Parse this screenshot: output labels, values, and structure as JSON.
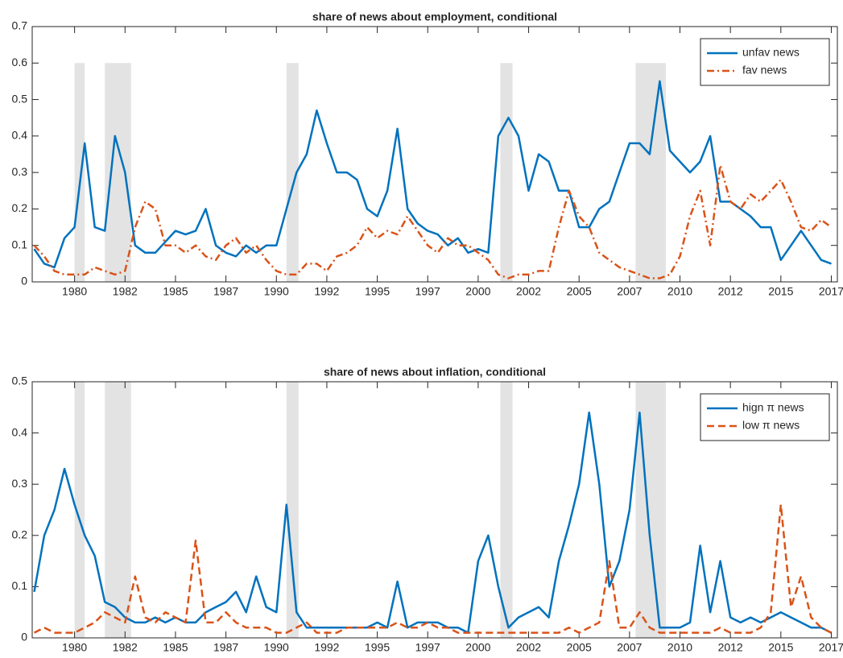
{
  "chart_data": [
    {
      "type": "line",
      "title": "share of news about employment, conditional",
      "x": [
        1978,
        1978.5,
        1979,
        1979.5,
        1980,
        1980.5,
        1981,
        1981.5,
        1982,
        1982.5,
        1983,
        1983.5,
        1984,
        1984.5,
        1985,
        1985.5,
        1986,
        1986.5,
        1987,
        1987.5,
        1988,
        1988.5,
        1989,
        1989.5,
        1990,
        1990.5,
        1991,
        1991.5,
        1992,
        1992.5,
        1993,
        1993.5,
        1994,
        1994.5,
        1995,
        1995.5,
        1996,
        1996.5,
        1997,
        1997.5,
        1998,
        1998.5,
        1999,
        1999.5,
        2000,
        2000.5,
        2001,
        2001.5,
        2002,
        2002.5,
        2003,
        2003.5,
        2004,
        2004.5,
        2005,
        2005.5,
        2006,
        2006.5,
        2007,
        2007.5,
        2008,
        2008.5,
        2009,
        2009.5,
        2010,
        2010.5,
        2011,
        2011.5,
        2012,
        2012.5,
        2013,
        2013.5,
        2014,
        2014.5,
        2015,
        2015.5,
        2016,
        2016.5,
        2017,
        2017.5
      ],
      "series": [
        {
          "name": "unfav news",
          "color": "#0072BD",
          "dash": "solid",
          "values": [
            0.09,
            0.05,
            0.04,
            0.12,
            0.15,
            0.38,
            0.15,
            0.14,
            0.4,
            0.3,
            0.1,
            0.08,
            0.08,
            0.11,
            0.14,
            0.13,
            0.14,
            0.2,
            0.1,
            0.08,
            0.07,
            0.1,
            0.08,
            0.1,
            0.1,
            0.2,
            0.3,
            0.35,
            0.47,
            0.38,
            0.3,
            0.3,
            0.28,
            0.2,
            0.18,
            0.25,
            0.42,
            0.2,
            0.16,
            0.14,
            0.13,
            0.1,
            0.12,
            0.08,
            0.09,
            0.08,
            0.4,
            0.45,
            0.4,
            0.25,
            0.35,
            0.33,
            0.25,
            0.25,
            0.15,
            0.15,
            0.2,
            0.22,
            0.3,
            0.38,
            0.38,
            0.35,
            0.55,
            0.36,
            0.33,
            0.3,
            0.33,
            0.4,
            0.22,
            0.22,
            0.2,
            0.18,
            0.15,
            0.15,
            0.06,
            0.1,
            0.14,
            0.1,
            0.06,
            0.05
          ]
        },
        {
          "name": "fav news",
          "color": "#D95319",
          "dash": "dashdot",
          "values": [
            0.1,
            0.07,
            0.03,
            0.02,
            0.02,
            0.02,
            0.04,
            0.03,
            0.02,
            0.03,
            0.15,
            0.22,
            0.2,
            0.1,
            0.1,
            0.08,
            0.1,
            0.07,
            0.06,
            0.1,
            0.12,
            0.08,
            0.1,
            0.06,
            0.03,
            0.02,
            0.02,
            0.05,
            0.05,
            0.03,
            0.07,
            0.08,
            0.1,
            0.15,
            0.12,
            0.14,
            0.13,
            0.18,
            0.14,
            0.1,
            0.08,
            0.12,
            0.1,
            0.1,
            0.08,
            0.06,
            0.02,
            0.01,
            0.02,
            0.02,
            0.03,
            0.03,
            0.15,
            0.25,
            0.18,
            0.15,
            0.08,
            0.06,
            0.04,
            0.03,
            0.02,
            0.01,
            0.01,
            0.02,
            0.07,
            0.18,
            0.25,
            0.1,
            0.32,
            0.22,
            0.2,
            0.24,
            0.22,
            0.25,
            0.28,
            0.22,
            0.15,
            0.14,
            0.17,
            0.15
          ]
        }
      ],
      "xlim": [
        1977.9,
        2017.8
      ],
      "xticks": [
        1980,
        {
          "value": 1982.5,
          "label": "1982"
        },
        1985,
        {
          "value": 1987.5,
          "label": "1987"
        },
        1990,
        {
          "value": 1992.5,
          "label": "1992"
        },
        1995,
        {
          "value": 1997.5,
          "label": "1997"
        },
        2000,
        {
          "value": 2002.5,
          "label": "2002"
        },
        2005,
        {
          "value": 2007.5,
          "label": "2007"
        },
        2010,
        {
          "value": 2012.5,
          "label": "2012"
        },
        2015,
        {
          "value": 2017.5,
          "label": "2017"
        }
      ],
      "ylim": [
        0,
        0.7
      ],
      "yticks": [
        0,
        0.1,
        0.2,
        0.3,
        0.4,
        0.5,
        0.6,
        0.7
      ],
      "shaded_regions": [
        [
          1980.0,
          1980.5
        ],
        [
          1981.5,
          1982.8
        ],
        [
          1990.5,
          1991.1
        ],
        [
          2001.1,
          2001.7
        ],
        [
          2007.8,
          2009.3
        ]
      ],
      "shade_top": 0.6,
      "shade_color": "#e3e3e3",
      "legend": "upper right"
    },
    {
      "type": "line",
      "title": "share of news about inflation, conditional",
      "x": [
        1978,
        1978.5,
        1979,
        1979.5,
        1980,
        1980.5,
        1981,
        1981.5,
        1982,
        1982.5,
        1983,
        1983.5,
        1984,
        1984.5,
        1985,
        1985.5,
        1986,
        1986.5,
        1987,
        1987.5,
        1988,
        1988.5,
        1989,
        1989.5,
        1990,
        1990.5,
        1991,
        1991.5,
        1992,
        1992.5,
        1993,
        1993.5,
        1994,
        1994.5,
        1995,
        1995.5,
        1996,
        1996.5,
        1997,
        1997.5,
        1998,
        1998.5,
        1999,
        1999.5,
        2000,
        2000.5,
        2001,
        2001.5,
        2002,
        2002.5,
        2003,
        2003.5,
        2004,
        2004.5,
        2005,
        2005.5,
        2006,
        2006.5,
        2007,
        2007.5,
        2008,
        2008.5,
        2009,
        2009.5,
        2010,
        2010.5,
        2011,
        2011.5,
        2012,
        2012.5,
        2013,
        2013.5,
        2014,
        2014.5,
        2015,
        2015.5,
        2016,
        2016.5,
        2017,
        2017.5
      ],
      "series": [
        {
          "name": "hign π news",
          "color": "#0072BD",
          "dash": "solid",
          "values": [
            0.09,
            0.2,
            0.25,
            0.33,
            0.26,
            0.2,
            0.16,
            0.07,
            0.06,
            0.04,
            0.03,
            0.03,
            0.04,
            0.03,
            0.04,
            0.03,
            0.03,
            0.05,
            0.06,
            0.07,
            0.09,
            0.05,
            0.12,
            0.06,
            0.05,
            0.26,
            0.05,
            0.02,
            0.02,
            0.02,
            0.02,
            0.02,
            0.02,
            0.02,
            0.03,
            0.02,
            0.11,
            0.02,
            0.03,
            0.03,
            0.03,
            0.02,
            0.02,
            0.01,
            0.15,
            0.2,
            0.1,
            0.02,
            0.04,
            0.05,
            0.06,
            0.04,
            0.15,
            0.22,
            0.3,
            0.44,
            0.3,
            0.1,
            0.15,
            0.25,
            0.44,
            0.2,
            0.02,
            0.02,
            0.02,
            0.03,
            0.18,
            0.05,
            0.15,
            0.04,
            0.03,
            0.04,
            0.03,
            0.04,
            0.05,
            0.04,
            0.03,
            0.02,
            0.02,
            0.01
          ]
        },
        {
          "name": "low π news",
          "color": "#D95319",
          "dash": "dashed",
          "values": [
            0.01,
            0.02,
            0.01,
            0.01,
            0.01,
            0.02,
            0.03,
            0.05,
            0.04,
            0.03,
            0.12,
            0.04,
            0.03,
            0.05,
            0.04,
            0.03,
            0.19,
            0.03,
            0.03,
            0.05,
            0.03,
            0.02,
            0.02,
            0.02,
            0.01,
            0.01,
            0.02,
            0.03,
            0.01,
            0.01,
            0.01,
            0.02,
            0.02,
            0.02,
            0.02,
            0.02,
            0.03,
            0.02,
            0.02,
            0.03,
            0.02,
            0.02,
            0.01,
            0.01,
            0.01,
            0.01,
            0.01,
            0.01,
            0.01,
            0.01,
            0.01,
            0.01,
            0.01,
            0.02,
            0.01,
            0.02,
            0.03,
            0.15,
            0.02,
            0.02,
            0.05,
            0.02,
            0.01,
            0.01,
            0.01,
            0.01,
            0.01,
            0.01,
            0.02,
            0.01,
            0.01,
            0.01,
            0.02,
            0.05,
            0.26,
            0.06,
            0.12,
            0.04,
            0.02,
            0.01
          ]
        }
      ],
      "xlim": [
        1977.9,
        2017.8
      ],
      "xticks": [
        1980,
        {
          "value": 1982.5,
          "label": "1982"
        },
        1985,
        {
          "value": 1987.5,
          "label": "1987"
        },
        1990,
        {
          "value": 1992.5,
          "label": "1992"
        },
        1995,
        {
          "value": 1997.5,
          "label": "1997"
        },
        2000,
        {
          "value": 2002.5,
          "label": "2002"
        },
        2005,
        {
          "value": 2007.5,
          "label": "2007"
        },
        2010,
        {
          "value": 2012.5,
          "label": "2012"
        },
        2015,
        {
          "value": 2017.5,
          "label": "2017"
        }
      ],
      "ylim": [
        0,
        0.5
      ],
      "yticks": [
        0,
        0.1,
        0.2,
        0.3,
        0.4,
        0.5
      ],
      "shaded_regions": [
        [
          1980.0,
          1980.5
        ],
        [
          1981.5,
          1982.8
        ],
        [
          1990.5,
          1991.1
        ],
        [
          2001.1,
          2001.7
        ],
        [
          2007.8,
          2009.3
        ]
      ],
      "shade_top": 0.5,
      "shade_color": "#e3e3e3",
      "legend": "upper right"
    }
  ]
}
